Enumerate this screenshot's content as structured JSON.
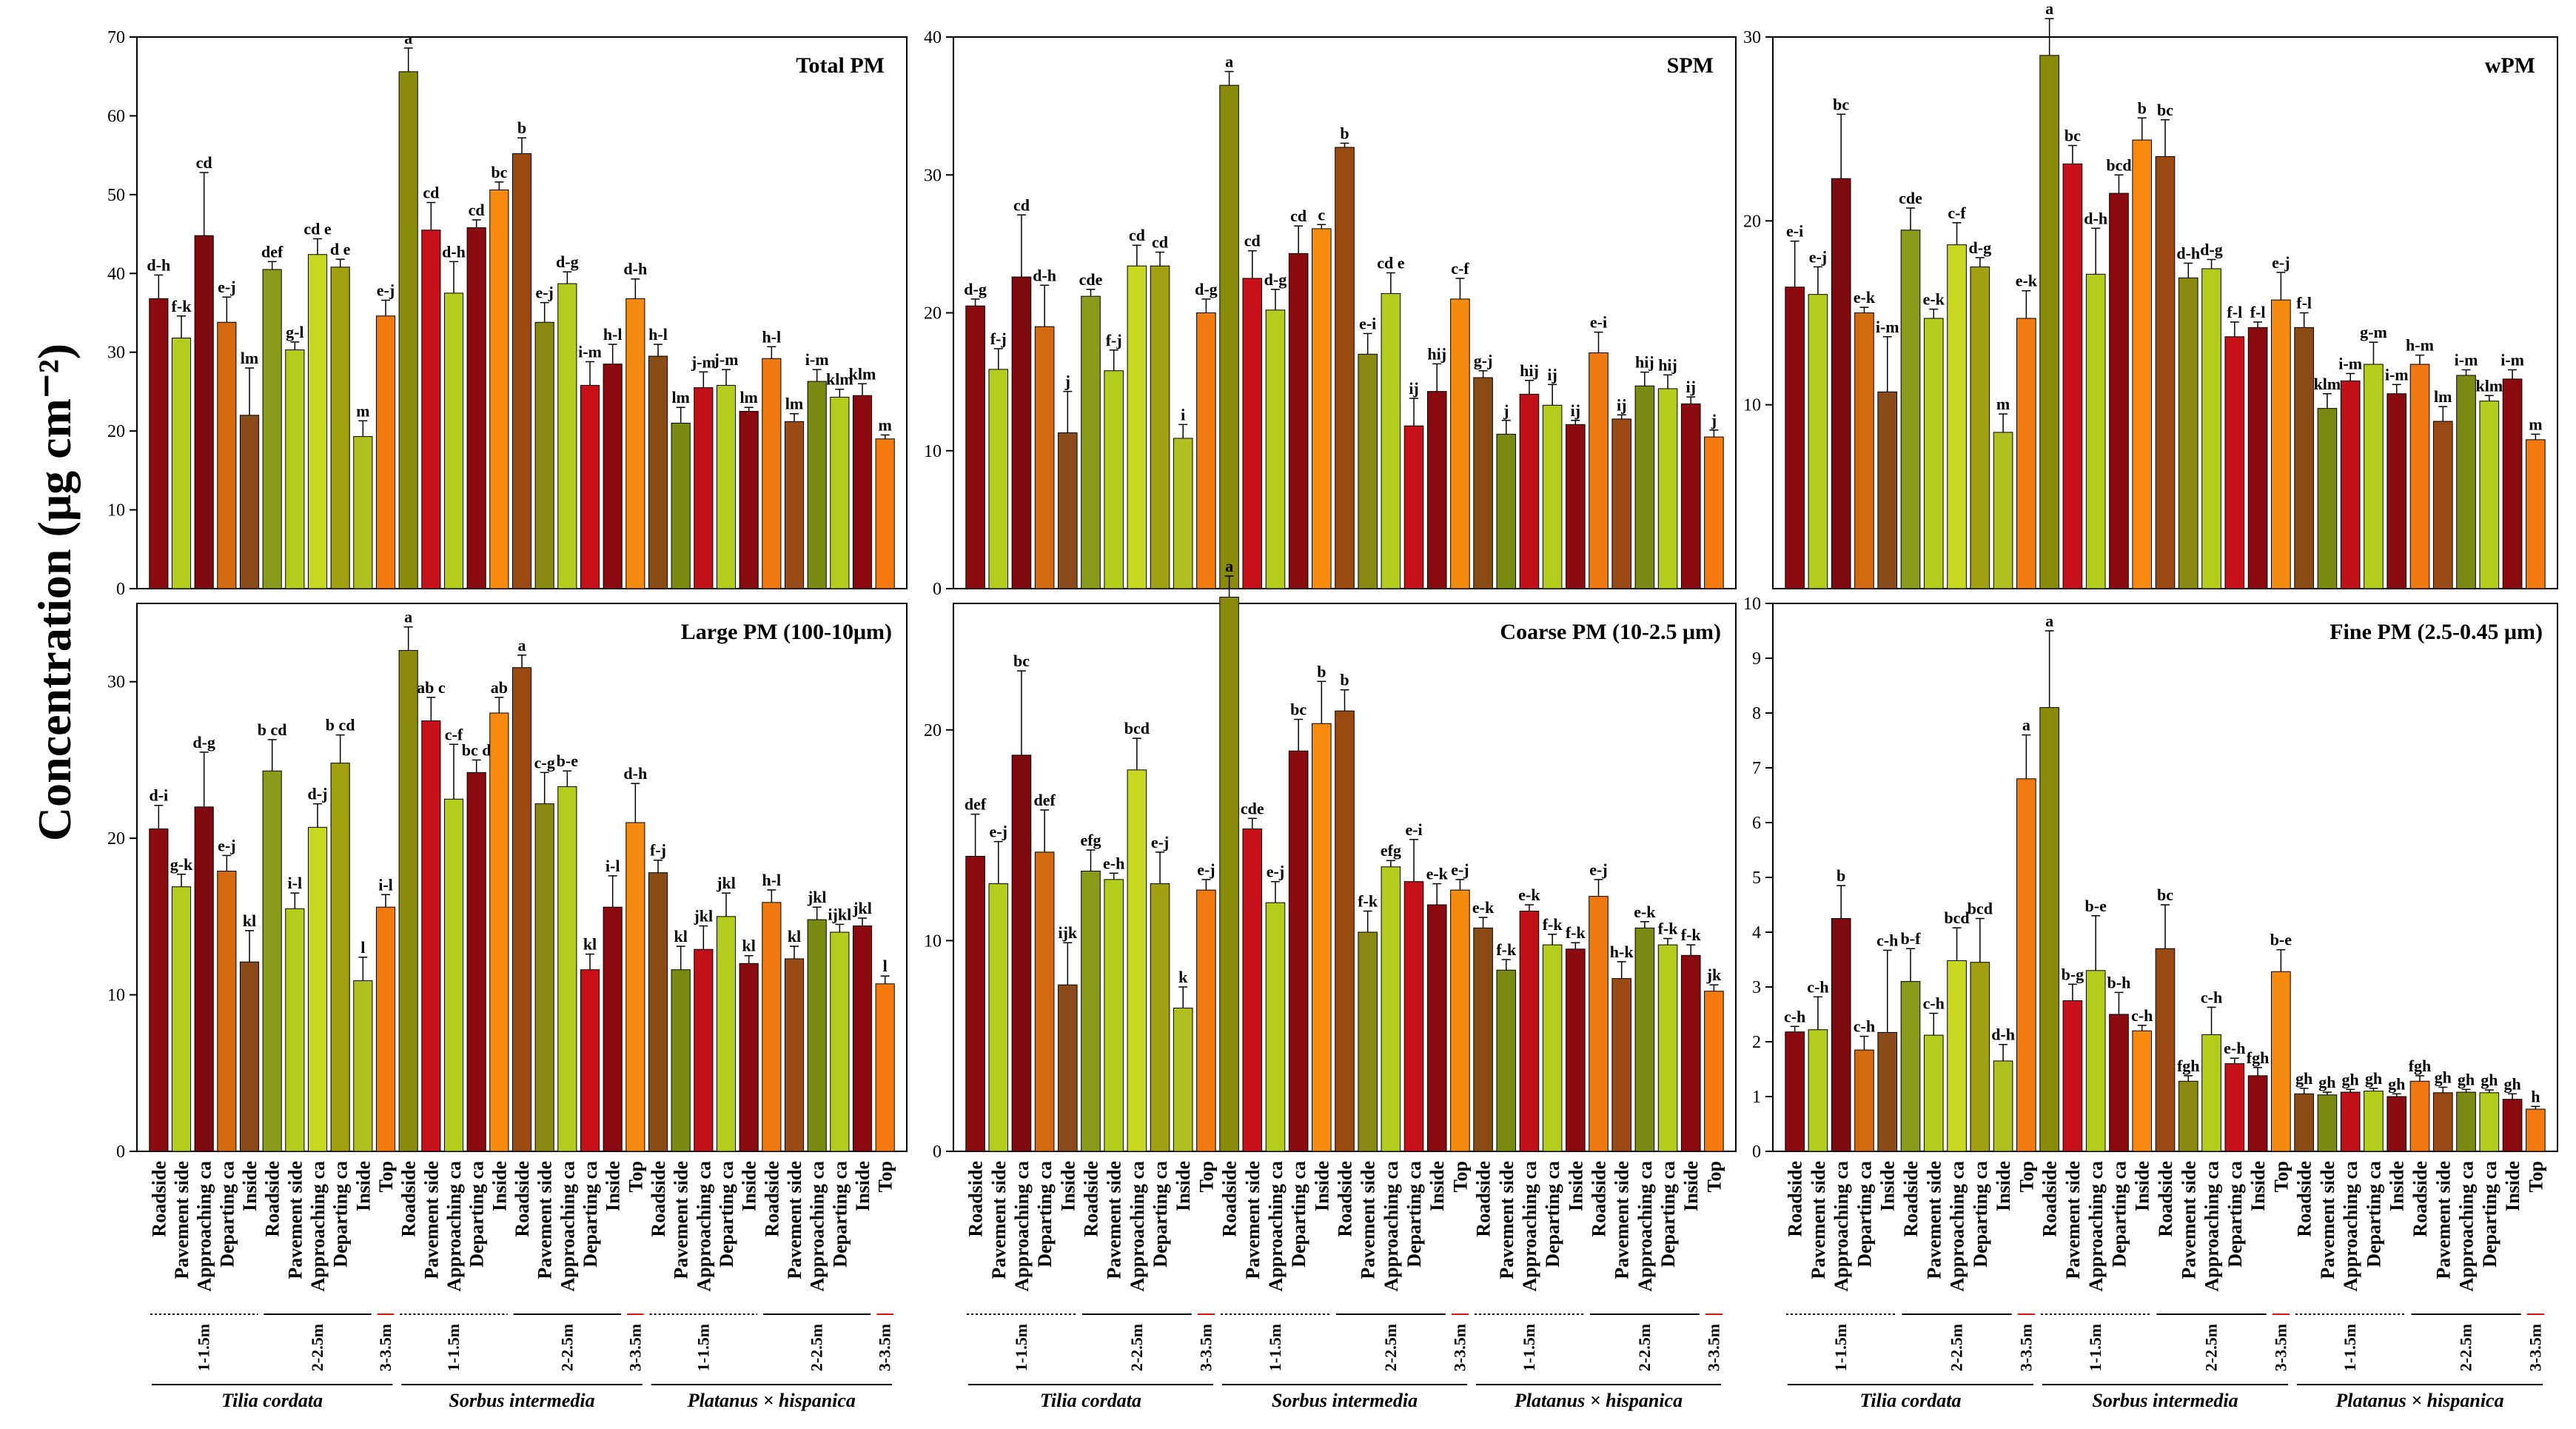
{
  "y_axis_label": "Concentration (μg cm⁻²)",
  "categories": [
    "Roadside",
    "Pavement side",
    "Approaching ca",
    "Departing ca",
    "Inside",
    "Roadside",
    "Pavement side",
    "Approaching ca",
    "Departing ca",
    "Inside",
    "Top",
    "Roadside",
    "Pavement side",
    "Approaching ca",
    "Departing ca",
    "Inside",
    "Roadside",
    "Pavement side",
    "Approaching ca",
    "Departing ca",
    "Inside",
    "Top",
    "Roadside",
    "Pavement side",
    "Approaching ca",
    "Departing ca",
    "Inside",
    "Roadside",
    "Pavement side",
    "Approaching ca",
    "Departing ca",
    "Inside",
    "Top"
  ],
  "categories_right": [
    "Roadside",
    "Pavement side",
    "Approaching ca",
    "Departing ca",
    "Inside",
    "Roadside",
    "Pavement side",
    "Approaching ca",
    "Departing ca",
    "Inside",
    "Top",
    "Roadside",
    "Pavement side",
    "Approaching ca",
    "Departing ca",
    "Inside",
    "Roadside",
    "Pavement side",
    "Approaching ca",
    "Departing ca",
    "Inside",
    "Top",
    "Roadside",
    "Pavement side",
    "Approaching ca",
    "Departing ca",
    "Inside",
    "Roadside",
    "Pavement side",
    "Approaching ca",
    "Departing ca",
    "Inside",
    "Top"
  ],
  "height_groups": [
    "1-1.5m",
    "2-2.5m",
    "3-3.5m",
    "1-1.5m",
    "2-2.5m",
    "3-3.5m",
    "1-1.5m",
    "2-2.5m",
    "3-3.5m"
  ],
  "species": [
    "Tilia cordata",
    "Sorbus intermedia",
    "Platanus × hispanica"
  ],
  "bar_colors": [
    "#8b0a10",
    "#b4cc1c",
    "#7f0a10",
    "#d46a10",
    "#8a4a1a",
    "#8a9a1a",
    "#b4cc1c",
    "#c8d820",
    "#a0a010",
    "#b0c020",
    "#f07a10",
    "#8a8a0a",
    "#c8101a",
    "#b4cc1c",
    "#8a0c10",
    "#f88a10",
    "#9a4a10",
    "#8a8a12",
    "#b4cc1c",
    "#c81018",
    "#8a0a10",
    "#f48a10",
    "#8a4a14",
    "#7a8a10",
    "#c01018",
    "#b4cc1c",
    "#8a0c10",
    "#f07810",
    "#9a4a14",
    "#7a8a12",
    "#b4cc1c",
    "#8a0a10",
    "#f47a10"
  ],
  "chart_data": [
    {
      "type": "bar",
      "title": "Total PM",
      "ylim": [
        0,
        70
      ],
      "yticks": [
        0,
        10,
        20,
        30,
        40,
        50,
        60,
        70
      ],
      "values": [
        36.8,
        31.8,
        44.8,
        33.8,
        22.0,
        40.5,
        30.3,
        42.4,
        40.8,
        19.3,
        34.6,
        65.6,
        45.5,
        37.5,
        45.8,
        50.6,
        55.2,
        33.8,
        38.7,
        25.8,
        28.5,
        36.8,
        29.5,
        21.0,
        25.5,
        25.8,
        22.5,
        29.2,
        21.2,
        26.3,
        24.3,
        24.5,
        19.0
      ],
      "errors": [
        3.0,
        2.8,
        8.0,
        3.2,
        6.0,
        1.0,
        1.0,
        2.0,
        1.0,
        2.0,
        2.0,
        3.0,
        3.5,
        4.0,
        1.0,
        1.0,
        2.0,
        2.5,
        1.5,
        3.0,
        2.5,
        2.5,
        1.5,
        2.0,
        2.0,
        2.0,
        0.5,
        1.5,
        1.0,
        1.5,
        1.0,
        1.5,
        0.5
      ],
      "letters": [
        "d-h",
        "f-k",
        "cd",
        "e-j",
        "lm",
        "def",
        "g-l",
        "cd e",
        "d e",
        "m",
        "e-j",
        "a",
        "cd",
        "d-h",
        "cd",
        "bc",
        "b",
        "e-j",
        "d-g",
        "i-m",
        "h-l",
        "d-h",
        "h-l",
        "lm",
        "j-m",
        "j-m",
        "lm",
        "h-l",
        "lm",
        "i-m",
        "klm",
        "klm",
        "m"
      ]
    },
    {
      "type": "bar",
      "title": "SPM",
      "ylim": [
        0,
        40
      ],
      "yticks": [
        0,
        10,
        20,
        30,
        40
      ],
      "values": [
        20.5,
        15.9,
        22.6,
        19.0,
        11.3,
        21.2,
        15.8,
        23.4,
        23.4,
        10.9,
        20.0,
        36.5,
        22.5,
        20.2,
        24.3,
        26.1,
        32.0,
        17.0,
        21.4,
        11.8,
        14.3,
        21.0,
        15.3,
        11.2,
        14.1,
        13.3,
        11.9,
        17.1,
        12.3,
        14.7,
        14.5,
        13.4,
        11.0
      ],
      "errors": [
        0.5,
        1.5,
        4.5,
        3.0,
        3.0,
        0.5,
        1.5,
        1.5,
        1.0,
        1.0,
        1.0,
        1.0,
        2.0,
        1.5,
        2.0,
        0.3,
        0.3,
        1.5,
        1.5,
        2.0,
        2.0,
        1.5,
        0.5,
        1.0,
        1.0,
        1.5,
        0.3,
        1.5,
        0.3,
        1.0,
        1.0,
        0.5,
        0.5
      ],
      "letters": [
        "d-g",
        "f-j",
        "cd",
        "d-h",
        "j",
        "cde",
        "f-j",
        "cd",
        "cd",
        "i",
        "d-g",
        "a",
        "cd",
        "d-g",
        "cd",
        "c",
        "b",
        "e-i",
        "cd e",
        "ij",
        "hij",
        "c-f",
        "g-j",
        "j",
        "hij",
        "ij",
        "ij",
        "e-i",
        "ij",
        "hij",
        "hij",
        "ij",
        "j"
      ]
    },
    {
      "type": "bar",
      "title": "wPM",
      "ylim": [
        0,
        30
      ],
      "yticks": [
        10,
        20,
        30
      ],
      "ytick_labels": [
        "10",
        "20",
        "30"
      ],
      "values": [
        16.4,
        16.0,
        22.3,
        15.0,
        10.7,
        19.5,
        14.7,
        18.7,
        17.5,
        8.5,
        14.7,
        29.0,
        23.1,
        17.1,
        21.5,
        24.4,
        23.5,
        16.9,
        17.4,
        13.7,
        14.2,
        15.7,
        14.2,
        9.8,
        11.3,
        12.2,
        10.6,
        12.2,
        9.1,
        11.6,
        10.2,
        11.4,
        8.1
      ],
      "errors": [
        2.5,
        1.5,
        3.5,
        0.3,
        3.0,
        1.2,
        0.5,
        1.2,
        0.5,
        1.0,
        1.5,
        2.0,
        1.0,
        2.5,
        1.0,
        1.2,
        2.0,
        0.8,
        0.5,
        0.8,
        0.3,
        1.5,
        0.8,
        0.8,
        0.4,
        1.2,
        0.5,
        0.5,
        0.8,
        0.3,
        0.3,
        0.5,
        0.3
      ],
      "letters": [
        "e-i",
        "e-j",
        "bc",
        "e-k",
        "i-m",
        "cde",
        "e-k",
        "c-f",
        "d-g",
        "m",
        "e-k",
        "a",
        "bc",
        "d-h",
        "bcd",
        "b",
        "bc",
        "d-h",
        "d-g",
        "f-l",
        "f-l",
        "e-j",
        "f-l",
        "klm",
        "i-m",
        "g-m",
        "i-m",
        "h-m",
        "lm",
        "i-m",
        "klm",
        "i-m",
        "m"
      ]
    },
    {
      "type": "bar",
      "title": "Large PM (100-10μm)",
      "ylim": [
        0,
        35
      ],
      "yticks": [
        0,
        10,
        20,
        30
      ],
      "values": [
        20.6,
        16.9,
        22.0,
        17.9,
        12.1,
        24.3,
        15.5,
        20.7,
        24.8,
        10.9,
        15.6,
        32.0,
        27.5,
        22.5,
        24.2,
        28.0,
        30.9,
        22.2,
        23.3,
        11.6,
        15.6,
        21.0,
        17.8,
        11.6,
        12.9,
        15.0,
        12.0,
        15.9,
        12.3,
        14.8,
        14.0,
        14.4,
        10.7
      ],
      "errors": [
        1.5,
        0.8,
        3.5,
        1.0,
        2.0,
        2.0,
        1.0,
        1.5,
        1.8,
        1.5,
        0.8,
        1.5,
        1.5,
        3.5,
        0.8,
        1.0,
        0.8,
        2.0,
        1.0,
        1.0,
        2.0,
        2.5,
        0.8,
        1.5,
        1.5,
        1.5,
        0.5,
        0.8,
        0.8,
        0.8,
        0.5,
        0.5,
        0.5
      ],
      "letters": [
        "d-i",
        "g-k",
        "d-g",
        "e-j",
        "kl",
        "b cd",
        "i-l",
        "d-j",
        "b cd",
        "l",
        "i-l",
        "a",
        "ab c",
        "c-f",
        "bc d",
        "ab",
        "a",
        "c-g",
        "b-e",
        "kl",
        "i-l",
        "d-h",
        "f-j",
        "kl",
        "jkl",
        "jkl",
        "kl",
        "h-l",
        "kl",
        "jkl",
        "ijkl",
        "jkl",
        "l"
      ]
    },
    {
      "type": "bar",
      "title": "Coarse PM (10-2.5 μm)",
      "ylim": [
        0,
        26
      ],
      "yticks": [
        0,
        10,
        20
      ],
      "values": [
        14.0,
        12.7,
        18.8,
        14.2,
        7.9,
        13.3,
        12.9,
        18.1,
        12.7,
        6.8,
        12.4,
        26.3,
        15.3,
        11.8,
        19.0,
        20.3,
        20.9,
        10.4,
        13.5,
        12.8,
        11.7,
        12.4,
        10.6,
        8.6,
        11.4,
        9.8,
        9.6,
        12.1,
        8.2,
        10.6,
        9.8,
        9.3,
        7.6
      ],
      "errors": [
        2.0,
        2.0,
        4.0,
        2.0,
        2.0,
        1.0,
        0.3,
        1.5,
        1.5,
        1.0,
        0.5,
        1.0,
        0.5,
        1.0,
        1.5,
        2.0,
        1.0,
        1.0,
        0.3,
        2.0,
        1.0,
        0.5,
        0.5,
        0.5,
        0.3,
        0.5,
        0.3,
        0.8,
        0.8,
        0.3,
        0.3,
        0.5,
        0.3
      ],
      "letters": [
        "def",
        "e-j",
        "bc",
        "def",
        "ijk",
        "efg",
        "e-h",
        "bcd",
        "e-j",
        "k",
        "e-j",
        "a",
        "cde",
        "e-j",
        "bc",
        "b",
        "b",
        "f-k",
        "efg",
        "e-i",
        "e-k",
        "e-j",
        "e-k",
        "f-k",
        "e-k",
        "f-k",
        "f-k",
        "e-j",
        "h-k",
        "e-k",
        "f-k",
        "f-k",
        "jk"
      ]
    },
    {
      "type": "bar",
      "title": "Fine PM (2.5-0.45 μm)",
      "ylim": [
        0,
        10
      ],
      "yticks": [
        0,
        1,
        2,
        3,
        4,
        5,
        6,
        7,
        8,
        9,
        10
      ],
      "values": [
        2.18,
        2.22,
        4.25,
        1.85,
        2.17,
        3.1,
        2.12,
        3.48,
        3.45,
        1.65,
        6.8,
        8.1,
        2.75,
        3.3,
        2.5,
        2.2,
        3.7,
        1.28,
        2.13,
        1.6,
        1.38,
        3.28,
        1.05,
        1.03,
        1.08,
        1.1,
        1.0,
        1.28,
        1.07,
        1.08,
        1.07,
        0.95,
        0.77
      ],
      "errors": [
        0.1,
        0.6,
        0.6,
        0.25,
        1.5,
        0.6,
        0.4,
        0.6,
        0.8,
        0.3,
        0.8,
        1.4,
        0.3,
        1.0,
        0.4,
        0.1,
        0.8,
        0.1,
        0.5,
        0.1,
        0.15,
        0.4,
        0.1,
        0.05,
        0.05,
        0.05,
        0.05,
        0.1,
        0.1,
        0.05,
        0.05,
        0.1,
        0.05
      ],
      "letters": [
        "c-h",
        "c-h",
        "b",
        "c-h",
        "c-h",
        "b-f",
        "c-h",
        "bcd",
        "bcd",
        "d-h",
        "a",
        "a",
        "b-g",
        "b-e",
        "b-h",
        "c-h",
        "bc",
        "fgh",
        "c-h",
        "e-h",
        "fgh",
        "b-e",
        "gh",
        "gh",
        "gh",
        "gh",
        "gh",
        "fgh",
        "gh",
        "gh",
        "gh",
        "gh",
        "h"
      ]
    }
  ]
}
